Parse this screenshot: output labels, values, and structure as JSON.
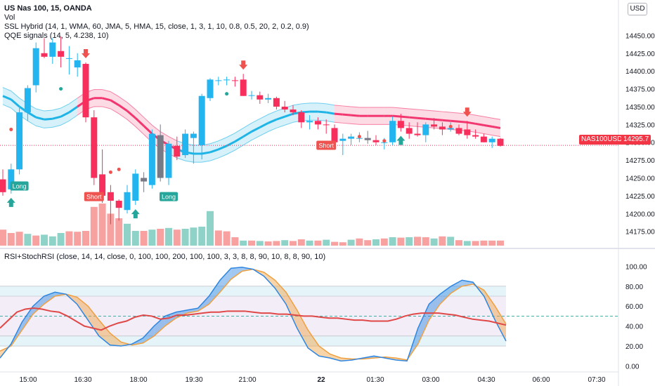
{
  "legend": {
    "title": "US Nas 100, 15, OANDA",
    "vol": "Vol",
    "ssl": "SSL Hybrid (14, 1, WMA, 60, JMA, 5, HMA, 15, close, 1, 3, 1, 10, 0.8, 0.5, 20, 2, 0.2, 0.9)",
    "qqe": "QQE signals (14, 5, 4.238, 10)",
    "rsi": "RSI+StochRSI (close, 14, 14, close, 0, 100, 100, 200, 100, 100, 3, 3, 8, 8, 90, 10, 8, 8, 90, 10)"
  },
  "currency": "USD",
  "symbol_tag": "NAS100USD",
  "last_price_tag": "14295.7",
  "colors": {
    "up": "#22b5f0",
    "down": "#f72f5c",
    "gray": "#787b86",
    "vol_up": "#8fd3c8",
    "vol_down": "#f7a1a1",
    "band_up": "#1eb4e6",
    "band_down": "#f23670",
    "long": "#26a69a",
    "short": "#ef5350",
    "rsi": "#e04848",
    "stoch_k": "#2f86e0",
    "stoch_d": "#f0a040"
  },
  "chart_data": [
    {
      "type": "candlestick",
      "title": "US Nas 100, 15, OANDA",
      "yticks": [
        14175,
        14200,
        14225,
        14250,
        14275,
        14300,
        14325,
        14350,
        14375,
        14400,
        14425,
        14450
      ],
      "ylim": [
        14155,
        14475
      ],
      "xticks": [
        "15:00",
        "16:30",
        "18:00",
        "19:30",
        "21:00",
        "22",
        "01:30",
        "03:00",
        "04:30",
        "06:00",
        "07:30"
      ],
      "ohlc": [
        [
          14248,
          14262,
          14225,
          14230
        ],
        [
          14234,
          14270,
          14228,
          14262
        ],
        [
          14262,
          14348,
          14255,
          14342
        ],
        [
          14342,
          14380,
          14330,
          14376
        ],
        [
          14380,
          14440,
          14370,
          14432
        ],
        [
          14425,
          14446,
          14418,
          14420
        ],
        [
          14420,
          14446,
          14410,
          14440
        ],
        [
          14428,
          14448,
          14405,
          14420
        ],
        [
          14418,
          14435,
          14395,
          14418
        ],
        [
          14405,
          14425,
          14392,
          14415
        ],
        [
          14410,
          14412,
          14328,
          14335
        ],
        [
          14335,
          14345,
          14240,
          14250
        ],
        [
          14255,
          14290,
          14215,
          14225
        ],
        [
          14230,
          14240,
          14185,
          14218
        ],
        [
          14218,
          14220,
          14190,
          14208
        ],
        [
          14205,
          14240,
          14200,
          14230
        ],
        [
          14218,
          14262,
          14212,
          14256
        ],
        [
          14250,
          14258,
          14230,
          14245
        ],
        [
          14240,
          14318,
          14235,
          14312
        ],
        [
          14310,
          14325,
          14245,
          14250
        ],
        [
          14250,
          14302,
          14240,
          14298
        ],
        [
          14295,
          14308,
          14275,
          14280
        ],
        [
          14282,
          14318,
          14278,
          14312
        ],
        [
          14306,
          14315,
          14270,
          14312
        ],
        [
          14296,
          14368,
          14276,
          14365
        ],
        [
          14362,
          14390,
          14358,
          14388
        ],
        [
          14386,
          14392,
          14380,
          14387
        ],
        [
          14387,
          14392,
          14380,
          14388
        ],
        [
          14387,
          14392,
          14378,
          14386
        ],
        [
          14388,
          14396,
          14365,
          14365
        ],
        [
          14365,
          14372,
          14360,
          14366
        ],
        [
          14366,
          14371,
          14354,
          14360
        ],
        [
          14360,
          14368,
          14355,
          14362
        ],
        [
          14362,
          14364,
          14346,
          14350
        ],
        [
          14350,
          14358,
          14342,
          14346
        ],
        [
          14346,
          14352,
          14338,
          14342
        ],
        [
          14342,
          14345,
          14320,
          14328
        ],
        [
          14328,
          14338,
          14318,
          14330
        ],
        [
          14330,
          14335,
          14318,
          14325
        ],
        [
          14325,
          14332,
          14312,
          14324
        ],
        [
          14320,
          14325,
          14300,
          14300
        ],
        [
          14302,
          14312,
          14282,
          14305
        ],
        [
          14305,
          14312,
          14296,
          14308
        ],
        [
          14305,
          14314,
          14300,
          14306
        ],
        [
          14306,
          14316,
          14298,
          14303
        ],
        [
          14303,
          14310,
          14296,
          14300
        ],
        [
          14300,
          14306,
          14290,
          14300
        ],
        [
          14300,
          14336,
          14296,
          14330
        ],
        [
          14330,
          14340,
          14315,
          14320
        ],
        [
          14320,
          14328,
          14305,
          14312
        ],
        [
          14312,
          14328,
          14308,
          14310
        ],
        [
          14310,
          14328,
          14300,
          14325
        ],
        [
          14325,
          14334,
          14318,
          14322
        ],
        [
          14322,
          14328,
          14310,
          14318
        ],
        [
          14318,
          14328,
          14315,
          14320
        ],
        [
          14320,
          14325,
          14310,
          14312
        ],
        [
          14318,
          14330,
          14305,
          14310
        ],
        [
          14310,
          14318,
          14305,
          14308
        ],
        [
          14308,
          14312,
          14300,
          14300
        ],
        [
          14300,
          14308,
          14292,
          14305
        ],
        [
          14305,
          14306,
          14294,
          14295
        ]
      ],
      "volume": [
        38,
        30,
        33,
        28,
        24,
        26,
        22,
        30,
        34,
        33,
        35,
        92,
        100,
        76,
        65,
        52,
        35,
        35,
        38,
        40,
        42,
        38,
        40,
        43,
        45,
        82,
        36,
        34,
        20,
        12,
        12,
        11,
        10,
        11,
        13,
        11,
        15,
        12,
        12,
        14,
        9,
        8,
        14,
        17,
        13,
        15,
        17,
        20,
        19,
        20,
        21,
        20,
        17,
        22,
        21,
        13,
        11,
        11,
        12,
        12,
        12
      ],
      "volume_colors": [
        "down",
        "down",
        "down",
        "up",
        "down",
        "up",
        "up",
        "up",
        "down",
        "down",
        "down",
        "down",
        "down",
        "down",
        "down",
        "up",
        "up",
        "down",
        "up",
        "down",
        "up",
        "down",
        "up",
        "up",
        "up",
        "up",
        "down",
        "down",
        "down",
        "up",
        "down",
        "up",
        "down",
        "down",
        "up",
        "down",
        "down",
        "up",
        "down",
        "up",
        "down",
        "down",
        "up",
        "down",
        "down",
        "up",
        "down",
        "up",
        "down",
        "up",
        "down",
        "down",
        "up",
        "down",
        "up",
        "down",
        "up",
        "down",
        "down",
        "down",
        "down"
      ],
      "band_mid": [
        14365,
        14360,
        14350,
        14342,
        14335,
        14332,
        14333,
        14336,
        14342,
        14350,
        14358,
        14362,
        14362,
        14359,
        14352,
        14344,
        14334,
        14323,
        14312,
        14303,
        14296,
        14290,
        14286,
        14284,
        14284,
        14286,
        14290,
        14295,
        14301,
        14308,
        14315,
        14321,
        14327,
        14332,
        14336,
        14340,
        14342,
        14343,
        14343,
        14342,
        14340,
        14339,
        14338,
        14337,
        14337,
        14337,
        14337,
        14337,
        14336,
        14335,
        14334,
        14333,
        14332,
        14331,
        14330,
        14329,
        14328,
        14326,
        14324,
        14322,
        14320
      ],
      "band_up_mask": [
        1,
        1,
        1,
        1,
        1,
        1,
        1,
        1,
        1,
        0,
        0,
        0,
        0,
        0,
        0,
        0,
        0,
        0,
        0,
        0,
        0,
        1,
        1,
        1,
        1,
        1,
        1,
        1,
        1,
        1,
        1,
        1,
        1,
        1,
        1,
        1,
        1,
        1,
        1,
        1,
        0,
        0,
        0,
        0,
        0,
        0,
        0,
        0,
        0,
        0,
        0,
        0,
        0,
        0,
        0,
        0,
        0,
        0,
        0,
        0,
        0
      ],
      "signals": [
        {
          "i": 2,
          "dir": "up",
          "label": "Long"
        },
        {
          "i": 20,
          "dir": "up",
          "label": "Long"
        },
        {
          "i": 11,
          "dir": "down",
          "label": "Short"
        },
        {
          "i": 39,
          "dir": "down",
          "label": "Short"
        }
      ],
      "arrows": [
        {
          "i": 1,
          "dir": "up"
        },
        {
          "i": 16,
          "dir": "up"
        },
        {
          "i": 48,
          "dir": "up"
        },
        {
          "i": 10,
          "dir": "down"
        },
        {
          "i": 29,
          "dir": "down"
        },
        {
          "i": 56,
          "dir": "down"
        }
      ],
      "dots": [
        [
          1,
          14318,
          "short"
        ],
        [
          7,
          14375,
          "long"
        ],
        [
          13,
          14258,
          "short"
        ],
        [
          14,
          14262,
          "short"
        ],
        [
          27,
          14368,
          "long"
        ],
        [
          43,
          14308,
          "short"
        ],
        [
          46,
          14302,
          "short"
        ],
        [
          54,
          14322,
          "short"
        ]
      ],
      "last_price": 14295.7
    },
    {
      "type": "line",
      "title": "RSI+StochRSI (close, 14, 14, close, 0, 100, 100, 200, 100, 100, 3, 3, 8, 8, 90, 10, 8, 8, 90, 10)",
      "yticks": [
        0,
        20,
        40,
        60,
        80,
        100
      ],
      "ylim": [
        -6,
        108
      ],
      "upper_band": [
        70,
        80
      ],
      "lower_band": [
        20,
        30
      ],
      "mid_line": 50,
      "rsi": [
        38,
        46,
        54,
        57,
        58,
        57,
        55,
        54,
        50,
        45,
        40,
        38,
        36,
        40,
        43,
        45,
        49,
        51,
        50,
        47,
        48,
        51,
        51,
        52,
        53,
        54,
        54,
        55,
        55,
        55,
        54,
        53,
        53,
        52,
        52,
        51,
        50,
        50,
        49,
        48,
        48,
        47,
        46,
        46,
        45,
        45,
        45,
        47,
        50,
        52,
        53,
        53,
        53,
        52,
        51,
        49,
        47,
        46,
        45,
        43,
        41
      ],
      "stoch_k": [
        8,
        22,
        44,
        60,
        70,
        74,
        72,
        62,
        46,
        30,
        21,
        20,
        22,
        28,
        40,
        50,
        54,
        56,
        58,
        70,
        86,
        98,
        99,
        97,
        90,
        78,
        62,
        38,
        18,
        10,
        8,
        5,
        6,
        8,
        10,
        8,
        6,
        5,
        38,
        62,
        72,
        80,
        86,
        84,
        70,
        46,
        25
      ],
      "stoch_d": [
        15,
        20,
        36,
        52,
        62,
        70,
        72,
        69,
        60,
        46,
        33,
        24,
        21,
        23,
        30,
        40,
        48,
        53,
        55,
        62,
        74,
        87,
        95,
        97,
        94,
        86,
        74,
        56,
        36,
        20,
        12,
        8,
        7,
        7,
        8,
        9,
        8,
        6,
        22,
        46,
        62,
        73,
        80,
        82,
        76,
        60,
        42
      ],
      "stoch_start": 14
    }
  ]
}
